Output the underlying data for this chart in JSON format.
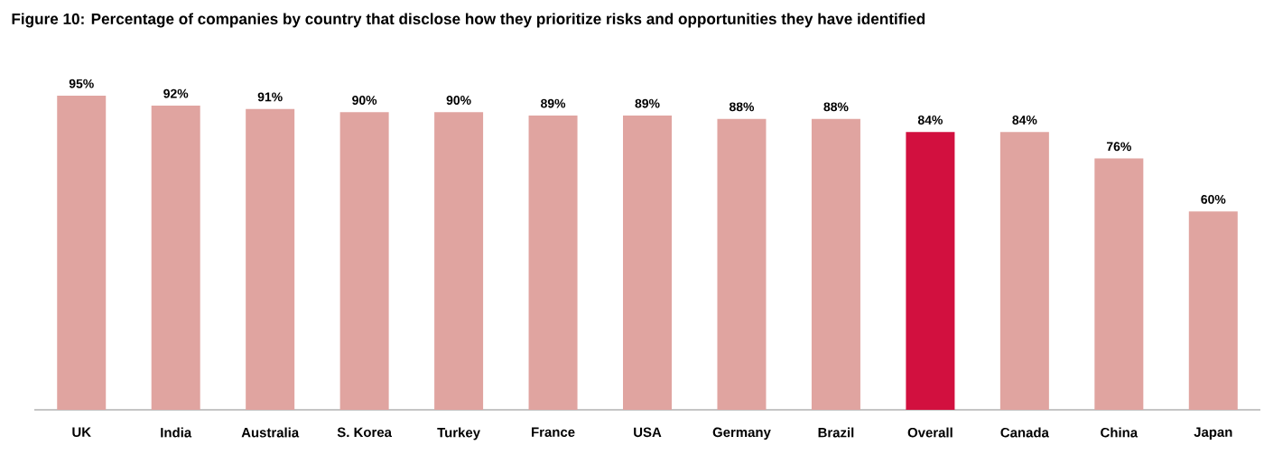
{
  "chart_data": {
    "type": "bar",
    "title": "Figure 10: Percentage of companies by country that disclose how they prioritize risks and opportunities they have identified",
    "categories": [
      "UK",
      "India",
      "Australia",
      "S. Korea",
      "Turkey",
      "France",
      "USA",
      "Germany",
      "Brazil",
      "Overall",
      "Canada",
      "China",
      "Japan"
    ],
    "values": [
      95,
      92,
      91,
      90,
      90,
      89,
      89,
      88,
      88,
      84,
      84,
      76,
      60
    ],
    "value_labels": [
      "95%",
      "92%",
      "91%",
      "90%",
      "90%",
      "89%",
      "89%",
      "88%",
      "88%",
      "84%",
      "84%",
      "76%",
      "60%"
    ],
    "colors": [
      "#e0a4a0",
      "#e0a4a0",
      "#e0a4a0",
      "#e0a4a0",
      "#e0a4a0",
      "#e0a4a0",
      "#e0a4a0",
      "#e0a4a0",
      "#e0a4a0",
      "#d2103f",
      "#e0a4a0",
      "#e0a4a0",
      "#e0a4a0"
    ]
  }
}
